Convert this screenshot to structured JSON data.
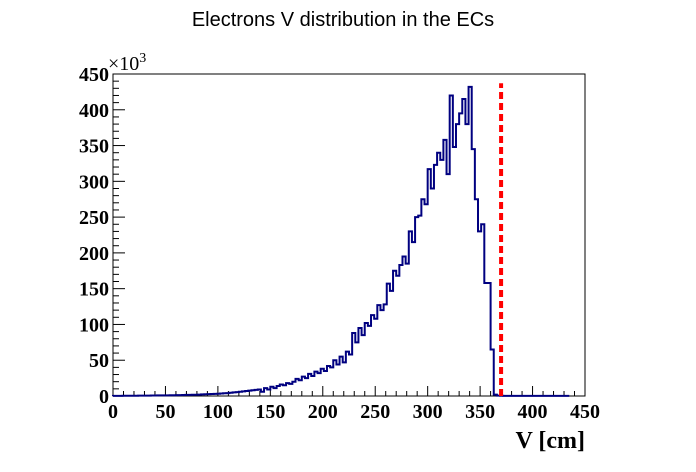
{
  "chart_data": {
    "type": "histogram",
    "title": "Electrons V distribution in the ECs",
    "xlabel": "V [cm]",
    "ylabel": "",
    "y_multiplier": "×10",
    "y_multiplier_exp": "3",
    "xlim": [
      0,
      450
    ],
    "ylim": [
      0,
      450
    ],
    "x_ticks": [
      "0",
      "50",
      "100",
      "150",
      "200",
      "250",
      "300",
      "350",
      "400",
      "450"
    ],
    "y_ticks": [
      "0",
      "50",
      "100",
      "150",
      "200",
      "250",
      "300",
      "350",
      "400",
      "450"
    ],
    "grid": false,
    "bin_width": 3,
    "bin_start": 0,
    "line_color": "#000080",
    "cut_color": "#ff0000",
    "cut_x": 370,
    "values": [
      0.2,
      0.2,
      0.2,
      0.3,
      0.3,
      0.3,
      0.4,
      0.4,
      0.5,
      0.5,
      0.6,
      0.6,
      0.7,
      0.7,
      0.8,
      0.8,
      0.9,
      0.9,
      1,
      1,
      1.2,
      1.2,
      1.4,
      1.5,
      1.6,
      1.7,
      1.8,
      2,
      2.2,
      2.4,
      2.6,
      2.8,
      3,
      3.2,
      3.5,
      3.8,
      4,
      4.5,
      5,
      5.5,
      6,
      6.5,
      7,
      7.5,
      8,
      8.5,
      9,
      6,
      11,
      9,
      13,
      11,
      14,
      16,
      15,
      18,
      17,
      20,
      24,
      22,
      27,
      25,
      31,
      28,
      34,
      32,
      38,
      35,
      42,
      40,
      50,
      44,
      55,
      47,
      62,
      58,
      88,
      75,
      95,
      85,
      102,
      98,
      113,
      108,
      127,
      120,
      128,
      157,
      147,
      175,
      168,
      183,
      195,
      185,
      230,
      215,
      250,
      252,
      275,
      268,
      317,
      290,
      323,
      340,
      330,
      358,
      310,
      420,
      348,
      380,
      395,
      415,
      380,
      432,
      345,
      275,
      230,
      240,
      158,
      158,
      65,
      2,
      0.5,
      0.3,
      0.2,
      0.2,
      0.2,
      0.2,
      0.2,
      0.2,
      0.2,
      0.2,
      0.2,
      0.2,
      0.2,
      0.2,
      0.2,
      0.2,
      0.2,
      0.2,
      0.2,
      0.2,
      0.2,
      0.2,
      0.2
    ]
  }
}
